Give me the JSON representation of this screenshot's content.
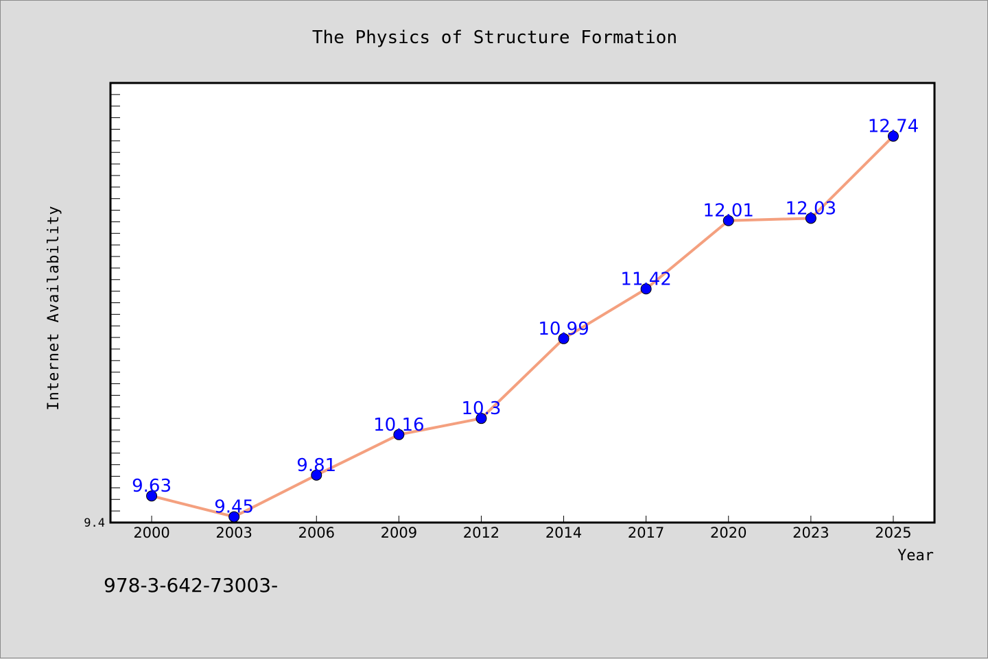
{
  "chart_data": {
    "type": "line",
    "title": "The Physics of Structure Formation",
    "xlabel": "Year",
    "ylabel": "Internet Availability",
    "categories": [
      "2000",
      "2003",
      "2006",
      "2009",
      "2012",
      "2014",
      "2017",
      "2020",
      "2023",
      "2025"
    ],
    "series": [
      {
        "values": [
          9.63,
          9.45,
          9.81,
          10.16,
          10.3,
          10.99,
          11.42,
          12.01,
          12.03,
          12.74
        ],
        "labels": [
          "9.63",
          "9.45",
          "9.81",
          "10.16",
          "10.3",
          "10.99",
          "11.42",
          "12.01",
          "12.03",
          "12.74"
        ]
      }
    ],
    "y_tick_labels": [
      {
        "value": 9.4,
        "label": "9.4"
      }
    ],
    "ylim": [
      9.4,
      13.2
    ],
    "grid": false,
    "legend": "none",
    "colors": {
      "line": "#f4a07f",
      "marker": "#0000ff",
      "marker_edge": "#000000",
      "data_label": "#0000ff",
      "plot_background": "#ffffff",
      "figure_background": "#dcdcdc"
    }
  },
  "annotation": {
    "text": "978-3-642-73003-"
  }
}
